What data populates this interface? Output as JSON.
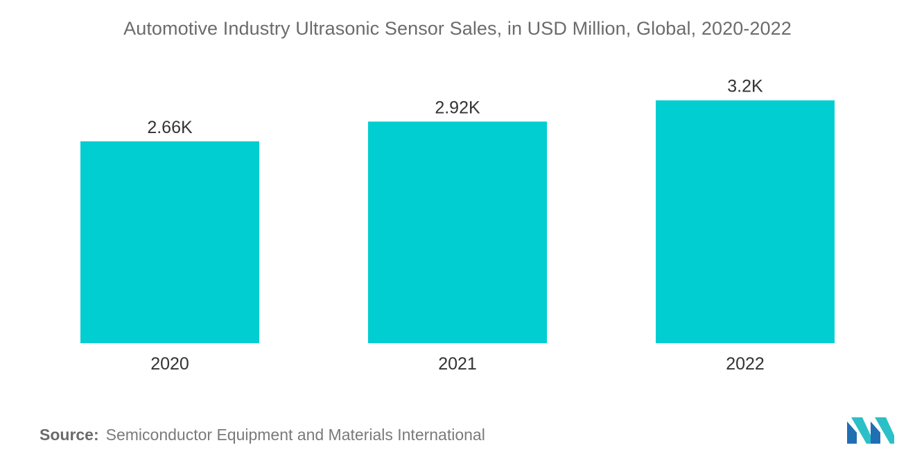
{
  "chart_data": {
    "type": "bar",
    "title": "Automotive Industry Ultrasonic Sensor Sales, in USD Million, Global, 2020-2022",
    "categories": [
      "2020",
      "2021",
      "2022"
    ],
    "values": [
      2660,
      2920,
      3200
    ],
    "data_labels": [
      "2.66K",
      "2.92K",
      "3.2K"
    ],
    "xlabel": "",
    "ylabel": "",
    "ylim": [
      0,
      3700
    ],
    "grid": false,
    "legend": "none",
    "bar_color": "#00CED1"
  },
  "source": {
    "label": "Source:",
    "text": "Semiconductor Equipment and Materials International"
  },
  "logo": {
    "icon": "mordor-intelligence-logo-icon",
    "colors": [
      "#1f6fb2",
      "#2bc0c7"
    ]
  },
  "colors": {
    "title": "#6b6b6b",
    "axis_text": "#333333",
    "background": "#ffffff"
  }
}
